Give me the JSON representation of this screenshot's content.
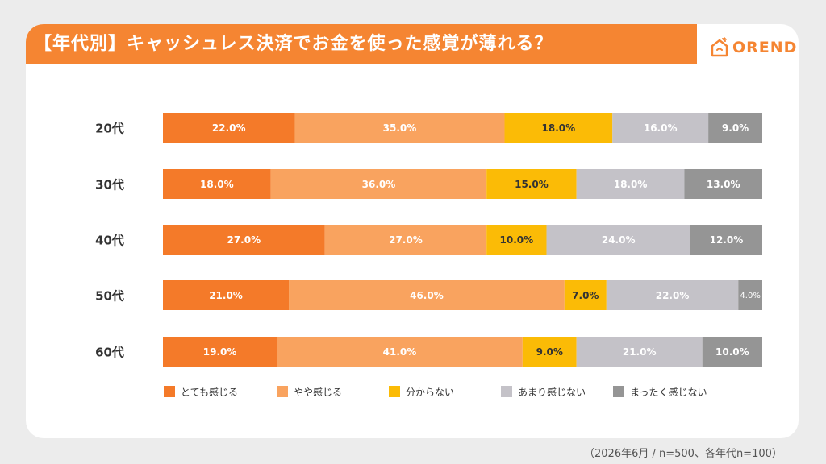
{
  "title": "【年代別】キャッシュレス決済でお金を使った感覚が薄れる？",
  "logo_text": "OREND",
  "footnote": "（2026年6月 / n=500、各年代n=100）",
  "chart_data": {
    "type": "bar",
    "orientation": "horizontal",
    "stacked": true,
    "percent": true,
    "categories": [
      "20代",
      "30代",
      "40代",
      "50代",
      "60代"
    ],
    "series": [
      {
        "name": "とても感じる",
        "color": "#f47a29",
        "values": [
          22.0,
          18.0,
          27.0,
          21.0,
          19.0
        ]
      },
      {
        "name": "やや感じる",
        "color": "#f9a35f",
        "values": [
          35.0,
          36.0,
          27.0,
          46.0,
          41.0
        ]
      },
      {
        "name": "分からない",
        "color": "#fbbb06",
        "values": [
          18.0,
          15.0,
          10.0,
          7.0,
          9.0
        ]
      },
      {
        "name": "あまり感じない",
        "color": "#c4c2c8",
        "values": [
          16.0,
          18.0,
          24.0,
          22.0,
          21.0
        ]
      },
      {
        "name": "まったく感じない",
        "color": "#959595",
        "values": [
          9.0,
          13.0,
          12.0,
          4.0,
          10.0
        ]
      }
    ],
    "legend_position": "bottom",
    "grid": false
  }
}
